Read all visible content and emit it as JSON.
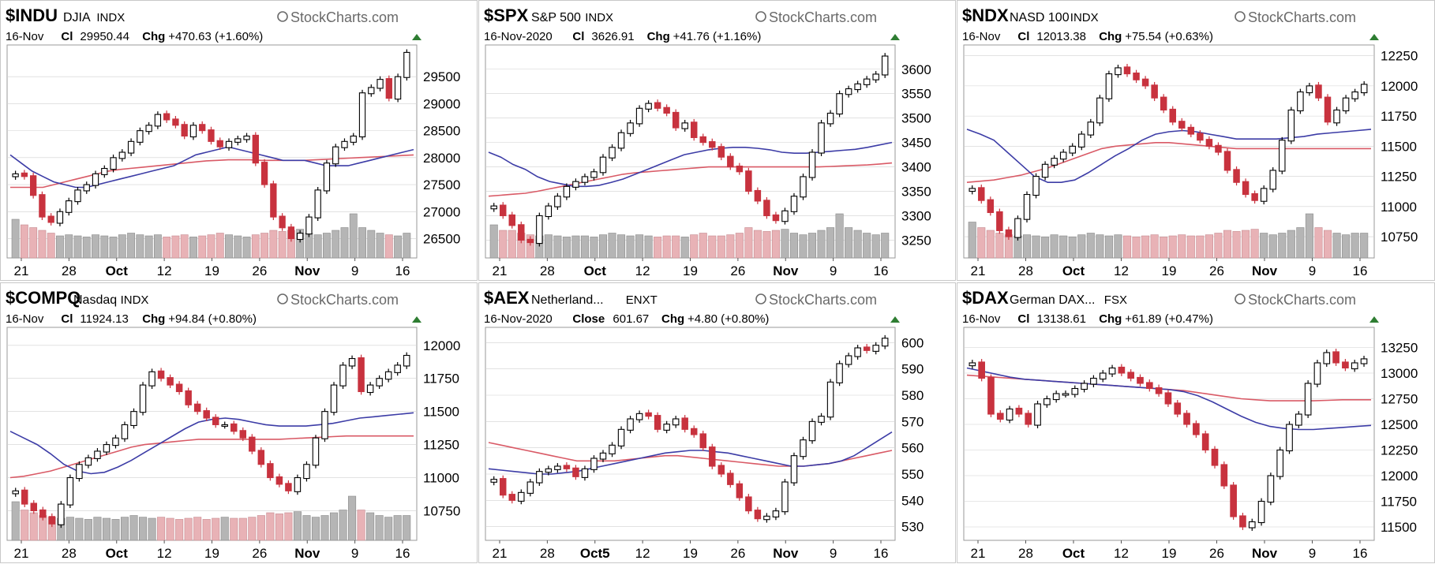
{
  "brand": "StockCharts.com",
  "colors": {
    "up_body": "#ffffff",
    "dark_body": "#000000",
    "red": "#c8323e",
    "red_fill": "#e8b2b6",
    "gray_vol": "#b5b5b5",
    "ma_blue": "#3c3ca6",
    "ma_red": "#d95a66",
    "up_arrow": "#2e7d32",
    "grid": "#d0d0d0"
  },
  "chart_data": [
    {
      "type": "candlestick",
      "symbol": "$INDU",
      "name": "DJIA",
      "exchange": "INDX",
      "date": "16-Nov",
      "close_label": "Cl",
      "close": "29950.44",
      "chg_label": "Chg",
      "change": "+470.63 (+1.60%)",
      "yticks": [
        "29500",
        "29000",
        "28500",
        "28000",
        "27500",
        "27000",
        "26500"
      ],
      "ylim": [
        26200,
        30000
      ],
      "xticks": [
        "21",
        "28",
        "Oct",
        "12",
        "19",
        "26",
        "Nov",
        "9",
        "16"
      ],
      "closes": [
        27700,
        27650,
        27300,
        26900,
        26800,
        27000,
        27200,
        27400,
        27500,
        27700,
        27800,
        28000,
        28100,
        28300,
        28500,
        28600,
        28800,
        28700,
        28600,
        28400,
        28600,
        28500,
        28300,
        28200,
        28300,
        28350,
        28400,
        27900,
        27500,
        26900,
        26700,
        26500,
        26600,
        26900,
        27400,
        27900,
        28200,
        28300,
        28400,
        29200,
        29300,
        29450,
        29100,
        29500,
        29950
      ],
      "volume": [
        0.7,
        0.6,
        0.55,
        0.5,
        0.45,
        0.4,
        0.42,
        0.4,
        0.38,
        0.42,
        0.4,
        0.38,
        0.42,
        0.45,
        0.42,
        0.4,
        0.42,
        0.38,
        0.4,
        0.42,
        0.38,
        0.4,
        0.42,
        0.45,
        0.42,
        0.4,
        0.38,
        0.42,
        0.45,
        0.5,
        0.48,
        0.5,
        0.52,
        0.45,
        0.42,
        0.45,
        0.5,
        0.55,
        0.8,
        0.55,
        0.5,
        0.45,
        0.42,
        0.4,
        0.45
      ],
      "ma_blue": [
        28050,
        27900,
        27750,
        27650,
        27550,
        27500,
        27450,
        27450,
        27500,
        27550,
        27600,
        27650,
        27700,
        27750,
        27800,
        27850,
        27950,
        28050,
        28100,
        28150,
        28200,
        28150,
        28100,
        28050,
        28000,
        27950,
        27950,
        27950,
        27900,
        27850,
        27850,
        27850,
        27900,
        27950,
        28000,
        28050,
        28100,
        28150
      ],
      "ma_red": [
        27450,
        27450,
        27450,
        27450,
        27500,
        27550,
        27600,
        27650,
        27700,
        27750,
        27780,
        27800,
        27820,
        27840,
        27860,
        27880,
        27900,
        27920,
        27940,
        27950,
        27960,
        27960,
        27960,
        27950,
        27950,
        27950,
        27950,
        27950,
        27960,
        27970,
        27980,
        27990,
        28000,
        28010,
        28020,
        28030,
        28040,
        28050
      ]
    },
    {
      "type": "candlestick",
      "symbol": "$SPX",
      "name": "S&P 500",
      "exchange": "INDX",
      "date": "16-Nov-2020",
      "close_label": "Cl",
      "close": "3626.91",
      "chg_label": "Chg",
      "change": "+41.76 (+1.16%)",
      "yticks": [
        "3600",
        "3550",
        "3500",
        "3450",
        "3400",
        "3350",
        "3300",
        "3250"
      ],
      "ylim": [
        3220,
        3640
      ],
      "xticks": [
        "21",
        "28",
        "Oct",
        "12",
        "19",
        "26",
        "Nov",
        "9",
        "16"
      ],
      "closes": [
        3320,
        3300,
        3280,
        3250,
        3245,
        3300,
        3320,
        3340,
        3360,
        3370,
        3380,
        3390,
        3420,
        3440,
        3470,
        3490,
        3520,
        3530,
        3520,
        3510,
        3480,
        3490,
        3460,
        3450,
        3440,
        3420,
        3400,
        3390,
        3350,
        3330,
        3300,
        3290,
        3310,
        3340,
        3380,
        3430,
        3490,
        3510,
        3550,
        3560,
        3570,
        3580,
        3590,
        3627
      ],
      "volume": [
        0.6,
        0.5,
        0.5,
        0.45,
        0.42,
        0.4,
        0.42,
        0.4,
        0.38,
        0.4,
        0.4,
        0.38,
        0.42,
        0.45,
        0.42,
        0.4,
        0.42,
        0.4,
        0.38,
        0.4,
        0.4,
        0.38,
        0.42,
        0.45,
        0.4,
        0.4,
        0.42,
        0.45,
        0.55,
        0.5,
        0.48,
        0.5,
        0.52,
        0.45,
        0.42,
        0.45,
        0.5,
        0.55,
        0.8,
        0.55,
        0.5,
        0.45,
        0.42,
        0.45
      ],
      "ma_blue": [
        3430,
        3420,
        3405,
        3395,
        3380,
        3370,
        3365,
        3360,
        3360,
        3362,
        3368,
        3375,
        3385,
        3395,
        3405,
        3415,
        3425,
        3430,
        3435,
        3438,
        3440,
        3440,
        3438,
        3435,
        3430,
        3428,
        3428,
        3430,
        3432,
        3434,
        3436,
        3440,
        3445,
        3450
      ],
      "ma_red": [
        3340,
        3342,
        3344,
        3346,
        3350,
        3355,
        3360,
        3365,
        3370,
        3375,
        3380,
        3385,
        3388,
        3390,
        3392,
        3394,
        3396,
        3398,
        3400,
        3400,
        3400,
        3400,
        3400,
        3400,
        3400,
        3400,
        3400,
        3400,
        3401,
        3402,
        3403,
        3404,
        3406,
        3408
      ]
    },
    {
      "type": "candlestick",
      "symbol": "$NDX",
      "name": "NASD 100",
      "exchange": "INDX",
      "date": "16-Nov",
      "close_label": "Cl",
      "close": "12013.38",
      "chg_label": "Chg",
      "change": "+75.54 (+0.63%)",
      "yticks": [
        "12250",
        "12000",
        "11750",
        "11500",
        "11250",
        "11000",
        "10750"
      ],
      "ylim": [
        10600,
        12300
      ],
      "xticks": [
        "21",
        "28",
        "Oct",
        "12",
        "19",
        "26",
        "Nov",
        "9",
        "16"
      ],
      "closes": [
        11150,
        11050,
        10950,
        10800,
        10750,
        10900,
        11100,
        11250,
        11350,
        11400,
        11450,
        11500,
        11600,
        11700,
        11900,
        12100,
        12150,
        12100,
        12050,
        12000,
        11900,
        11800,
        11700,
        11650,
        11600,
        11550,
        11500,
        11450,
        11300,
        11200,
        11100,
        11050,
        11150,
        11300,
        11550,
        11800,
        11950,
        12000,
        11900,
        11700,
        11800,
        11900,
        11950,
        12013
      ],
      "volume": [
        0.65,
        0.55,
        0.5,
        0.45,
        0.42,
        0.4,
        0.42,
        0.4,
        0.38,
        0.42,
        0.4,
        0.38,
        0.42,
        0.45,
        0.42,
        0.4,
        0.42,
        0.4,
        0.38,
        0.4,
        0.42,
        0.38,
        0.4,
        0.42,
        0.4,
        0.4,
        0.42,
        0.45,
        0.5,
        0.48,
        0.5,
        0.52,
        0.45,
        0.42,
        0.45,
        0.5,
        0.55,
        0.8,
        0.55,
        0.5,
        0.45,
        0.42,
        0.45,
        0.45
      ],
      "ma_blue": [
        11640,
        11600,
        11550,
        11450,
        11350,
        11250,
        11200,
        11200,
        11220,
        11280,
        11350,
        11420,
        11480,
        11550,
        11600,
        11620,
        11630,
        11620,
        11600,
        11580,
        11560,
        11560,
        11560,
        11560,
        11570,
        11580,
        11600,
        11610,
        11620,
        11630,
        11640
      ],
      "ma_red": [
        11200,
        11210,
        11220,
        11240,
        11260,
        11290,
        11320,
        11360,
        11400,
        11440,
        11480,
        11500,
        11510,
        11520,
        11530,
        11530,
        11520,
        11510,
        11500,
        11490,
        11480,
        11480,
        11480,
        11480,
        11480,
        11480,
        11480,
        11480,
        11480,
        11480,
        11480
      ]
    },
    {
      "type": "candlestick",
      "symbol": "$COMPQ",
      "name": "Nasdaq",
      "exchange": "INDX",
      "date": "16-Nov",
      "close_label": "Cl",
      "close": "11924.13",
      "chg_label": "Chg",
      "change": "+94.84 (+0.80%)",
      "yticks": [
        "12000",
        "11750",
        "11500",
        "11250",
        "11000",
        "10750"
      ],
      "ylim": [
        10550,
        12100
      ],
      "xticks": [
        "21",
        "28",
        "Oct",
        "12",
        "19",
        "26",
        "Nov",
        "9",
        "16"
      ],
      "closes": [
        10900,
        10800,
        10750,
        10700,
        10650,
        10800,
        11000,
        11100,
        11150,
        11200,
        11250,
        11300,
        11400,
        11500,
        11700,
        11800,
        11750,
        11700,
        11650,
        11550,
        11500,
        11450,
        11400,
        11400,
        11350,
        11300,
        11200,
        11100,
        11000,
        10950,
        10900,
        11000,
        11100,
        11300,
        11500,
        11700,
        11850,
        11900,
        11650,
        11700,
        11750,
        11800,
        11850,
        11924
      ],
      "volume": [
        0.7,
        0.55,
        0.5,
        0.45,
        0.42,
        0.4,
        0.42,
        0.4,
        0.38,
        0.42,
        0.4,
        0.38,
        0.42,
        0.45,
        0.42,
        0.4,
        0.42,
        0.4,
        0.38,
        0.4,
        0.42,
        0.38,
        0.4,
        0.42,
        0.4,
        0.4,
        0.42,
        0.45,
        0.5,
        0.48,
        0.5,
        0.52,
        0.45,
        0.42,
        0.45,
        0.5,
        0.55,
        0.8,
        0.55,
        0.5,
        0.45,
        0.42,
        0.45,
        0.45
      ],
      "ma_blue": [
        11350,
        11300,
        11250,
        11180,
        11100,
        11050,
        11030,
        11040,
        11080,
        11130,
        11190,
        11250,
        11310,
        11370,
        11420,
        11440,
        11450,
        11440,
        11420,
        11400,
        11390,
        11390,
        11390,
        11400,
        11410,
        11430,
        11450,
        11460,
        11470,
        11480,
        11490
      ],
      "ma_red": [
        11000,
        11010,
        11030,
        11050,
        11080,
        11110,
        11140,
        11170,
        11200,
        11230,
        11250,
        11260,
        11270,
        11280,
        11290,
        11290,
        11290,
        11290,
        11290,
        11290,
        11290,
        11295,
        11300,
        11305,
        11310,
        11315,
        11315,
        11315,
        11315,
        11315,
        11315
      ]
    },
    {
      "type": "candlestick",
      "symbol": "$AEX",
      "name": "Netherland...",
      "exchange": "ENXT",
      "date": "16-Nov-2020",
      "close_label": "Close",
      "close": "601.67",
      "chg_label": "Chg",
      "change": "+4.80 (+0.80%)",
      "yticks": [
        "600",
        "590",
        "580",
        "570",
        "560",
        "550",
        "540",
        "530"
      ],
      "ylim": [
        526,
        604
      ],
      "xticks": [
        "21",
        "28",
        "Oct5",
        "12",
        "19",
        "26",
        "Nov",
        "9",
        "16"
      ],
      "closes": [
        548,
        542,
        540,
        543,
        547,
        551,
        552,
        553,
        552,
        549,
        552,
        556,
        558,
        561,
        567,
        571,
        573,
        572,
        567,
        569,
        571,
        567,
        565,
        560,
        553,
        550,
        546,
        541,
        536,
        533,
        534,
        536,
        547,
        557,
        563,
        570,
        572,
        585,
        592,
        595,
        598,
        597,
        599,
        601.67
      ],
      "volume": [],
      "ma_blue": [
        552,
        551.5,
        551,
        550.5,
        550,
        550,
        550.5,
        551,
        552,
        553,
        554,
        555,
        556,
        557,
        558,
        558.5,
        559,
        559,
        558.5,
        558,
        557,
        556,
        555,
        554,
        553,
        553,
        553.5,
        554,
        555,
        557,
        560,
        563,
        566
      ],
      "ma_red": [
        562,
        561,
        560,
        559,
        558,
        557,
        556,
        555,
        555,
        555,
        555,
        555.5,
        556,
        556.5,
        557,
        557,
        556.5,
        556,
        555.5,
        555,
        554.5,
        554,
        553.5,
        553,
        553,
        553,
        553.5,
        554,
        555,
        556,
        557,
        558,
        559
      ]
    },
    {
      "type": "candlestick",
      "symbol": "$DAX",
      "name": "German DAX...",
      "exchange": "FSX",
      "date": "16-Nov",
      "close_label": "Cl",
      "close": "13138.61",
      "chg_label": "Chg",
      "change": "+61.89 (+0.47%)",
      "yticks": [
        "13250",
        "13000",
        "12750",
        "12500",
        "12250",
        "12000",
        "11750",
        "11500"
      ],
      "ylim": [
        11400,
        13400
      ],
      "xticks": [
        "21",
        "28",
        "Oct",
        "12",
        "19",
        "26",
        "Nov",
        "9",
        "16"
      ],
      "closes": [
        13100,
        12950,
        12600,
        12550,
        12650,
        12600,
        12500,
        12700,
        12750,
        12800,
        12800,
        12850,
        12900,
        12950,
        13000,
        13050,
        13000,
        12950,
        12900,
        12850,
        12800,
        12700,
        12600,
        12500,
        12400,
        12250,
        12100,
        11900,
        11600,
        11500,
        11550,
        11750,
        12000,
        12250,
        12500,
        12600,
        12900,
        13100,
        13200,
        13100,
        13050,
        13100,
        13139
      ],
      "volume": [],
      "ma_blue": [
        13050,
        13020,
        12990,
        12960,
        12940,
        12930,
        12920,
        12910,
        12900,
        12890,
        12880,
        12870,
        12860,
        12850,
        12840,
        12820,
        12780,
        12720,
        12650,
        12580,
        12520,
        12480,
        12460,
        12450,
        12450,
        12460,
        12470,
        12480,
        12490
      ],
      "ma_red": [
        12980,
        12970,
        12960,
        12950,
        12940,
        12930,
        12920,
        12910,
        12900,
        12890,
        12880,
        12870,
        12860,
        12850,
        12840,
        12830,
        12810,
        12790,
        12770,
        12750,
        12740,
        12730,
        12730,
        12730,
        12730,
        12735,
        12740,
        12740,
        12740
      ]
    }
  ]
}
